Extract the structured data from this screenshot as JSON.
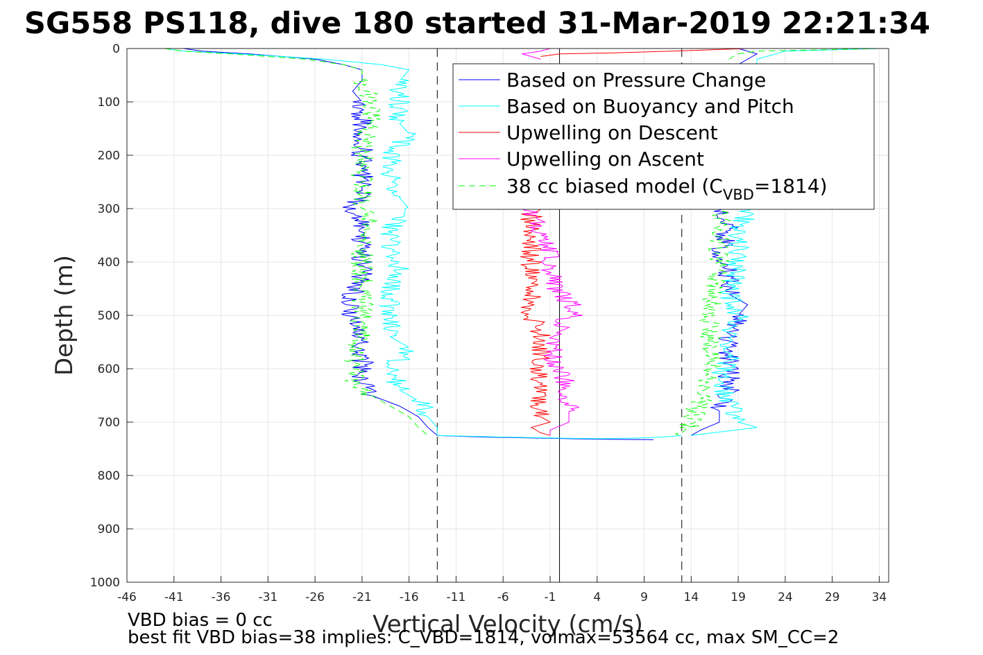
{
  "chart_data": {
    "type": "line",
    "title": "SG558 PS118, dive 180 started 31-Mar-2019 22:21:34",
    "xlabel": "Vertical Velocity (cm/s)",
    "ylabel": "Depth (m)",
    "xlim": [
      -46,
      35
    ],
    "ylim": [
      0,
      1000
    ],
    "y_reversed": true,
    "grid": true,
    "legend_position": "top-right",
    "xticks": [
      "-46",
      "-41",
      "-36",
      "-31",
      "-26",
      "-21",
      "-16",
      "-11",
      "-6",
      "-1",
      "4",
      "9",
      "14",
      "19",
      "24",
      "29",
      "34"
    ],
    "yticks": [
      "0",
      "100",
      "200",
      "300",
      "400",
      "500",
      "600",
      "700",
      "800",
      "900",
      "1000"
    ],
    "reference_lines": [
      {
        "x": -13,
        "style": "dashed",
        "color": "#000000"
      },
      {
        "x": 0,
        "style": "solid",
        "color": "#000000"
      },
      {
        "x": 13,
        "style": "dashed",
        "color": "#000000"
      }
    ],
    "series": [
      {
        "name": "Based on Pressure Change",
        "color": "#0000ff",
        "style": "solid",
        "segments": [
          {
            "depth": [
              0,
              5,
              10,
              20,
              30,
              40,
              60,
              80,
              100,
              140,
              180,
              220,
              260,
              300,
              340,
              380,
              420,
              460,
              500,
              540,
              580,
              620,
              650,
              670,
              690,
              710,
              725
            ],
            "velocity": [
              -40,
              -38,
              -33,
              -26,
              -23,
              -21,
              -21,
              -22,
              -21,
              -21,
              -21,
              -21,
              -21,
              -22,
              -21,
              -21,
              -21,
              -22,
              -22,
              -21,
              -21,
              -21,
              -20,
              -17,
              -15,
              -14,
              -13
            ]
          },
          {
            "depth": [
              725,
              728,
              730,
              732,
              733
            ],
            "velocity": [
              -13,
              -8,
              -2,
              4,
              10
            ]
          },
          {
            "depth": [
              0,
              5,
              10,
              20,
              30,
              310,
              340,
              380,
              420,
              460,
              480,
              500,
              540,
              580,
              620,
              650,
              680,
              700,
              715,
              725
            ],
            "velocity": [
              19,
              20,
              21,
              20,
              19,
              17,
              18,
              17,
              18,
              18,
              20,
              19,
              18,
              18,
              18,
              18,
              17,
              17,
              15,
              14
            ]
          }
        ]
      },
      {
        "name": "Based on Buoyancy and Pitch",
        "color": "#00ffff",
        "style": "solid",
        "segments": [
          {
            "depth": [
              0,
              5,
              10,
              20,
              30,
              40,
              60,
              100,
              140,
              160,
              200,
              240,
              280,
              300,
              340,
              380,
              420,
              460,
              500,
              540,
              560,
              600,
              640,
              660,
              690,
              710,
              725
            ],
            "velocity": [
              -42,
              -40,
              -34,
              -25,
              -19,
              -16,
              -17,
              -17,
              -17,
              -16,
              -18,
              -18,
              -17,
              -16,
              -18,
              -18,
              -17,
              -18,
              -18,
              -18,
              -16,
              -18,
              -17,
              -15,
              -14,
              -13,
              -13
            ]
          },
          {
            "depth": [
              0,
              5,
              10,
              20,
              310,
              340,
              380,
              420,
              460,
              500,
              540,
              580,
              620,
              660,
              700,
              710,
              725
            ],
            "velocity": [
              34,
              24,
              23,
              21,
              20,
              19,
              19,
              19,
              18,
              19,
              18,
              18,
              17,
              18,
              19,
              21,
              14
            ]
          }
        ]
      },
      {
        "name": "Upwelling on Descent",
        "color": "#ff0000",
        "style": "solid",
        "segments": [
          {
            "depth": [
              300,
              340,
              380,
              420,
              460,
              500,
              540,
              580,
              620,
              660,
              690,
              700,
              710,
              720,
              725
            ],
            "velocity": [
              -3,
              -3,
              -3,
              -3,
              -3,
              -3,
              -2,
              -2,
              -2,
              -2,
              -2,
              -1,
              -3,
              -2,
              -1
            ]
          },
          {
            "depth": [
              0,
              5,
              8,
              10,
              15
            ],
            "velocity": [
              20,
              12,
              6,
              0,
              -2
            ]
          }
        ]
      },
      {
        "name": "Upwelling on Ascent",
        "color": "#ff00ff",
        "style": "solid",
        "segments": [
          {
            "depth": [
              0,
              5,
              10,
              15,
              20
            ],
            "velocity": [
              -1,
              -2,
              -4,
              -3,
              -2
            ]
          },
          {
            "depth": [
              300,
              340,
              380,
              420,
              460,
              490,
              520,
              560,
              600,
              640,
              680,
              700,
              715,
              725
            ],
            "velocity": [
              -3,
              -2,
              -1,
              -1,
              0,
              2,
              0,
              -1,
              0,
              1,
              1,
              1,
              -1,
              -1
            ]
          }
        ]
      },
      {
        "name": "38 cc biased model (C_VBD=1814)",
        "color": "#00ff00",
        "style": "dashed",
        "segments": [
          {
            "depth": [
              0,
              5,
              10,
              20,
              30,
              40,
              60,
              100,
              140,
              180,
              220,
              260,
              300,
              340,
              380,
              420,
              460,
              500,
              540,
              580,
              620,
              650,
              670,
              690,
              710,
              725
            ],
            "velocity": [
              -42,
              -40,
              -35,
              -27,
              -23,
              -21,
              -21,
              -20,
              -20,
              -21,
              -21,
              -21,
              -21,
              -20,
              -21,
              -21,
              -21,
              -21,
              -21,
              -22,
              -22,
              -20,
              -18,
              -16,
              -15,
              -14
            ]
          },
          {
            "depth": [
              0,
              5,
              10,
              20,
              310,
              340,
              380,
              420,
              460,
              500,
              540,
              580,
              620,
              660,
              700,
              725
            ],
            "velocity": [
              34,
              21,
              19,
              18,
              17,
              17,
              17,
              17,
              16,
              16,
              16,
              16,
              16,
              15,
              14,
              13
            ]
          }
        ]
      }
    ],
    "shared_segment": {
      "color": "#00ffff",
      "depth": [
        725,
        728,
        730,
        731,
        730,
        728,
        725
      ],
      "velocity": [
        -13,
        -6,
        0,
        4,
        8,
        11,
        13
      ]
    }
  },
  "legend": {
    "items": [
      {
        "label": "Based on Pressure Change",
        "color": "#0000ff",
        "dashed": false
      },
      {
        "label": "Based on Buoyancy and Pitch",
        "color": "#00ffff",
        "dashed": false
      },
      {
        "label": "Upwelling on Descent",
        "color": "#ff0000",
        "dashed": false
      },
      {
        "label": "Upwelling on Ascent",
        "color": "#ff00ff",
        "dashed": false
      },
      {
        "label_main": "38 cc biased model (C",
        "label_sub": "VBD",
        "label_tail": "=1814)",
        "color": "#00ff00",
        "dashed": true
      }
    ]
  },
  "footer": {
    "line1": "VBD bias = 0 cc",
    "line2": "best fit VBD bias=38 implies: C_VBD=1814, volmax=53564 cc, max SM_CC=2"
  }
}
